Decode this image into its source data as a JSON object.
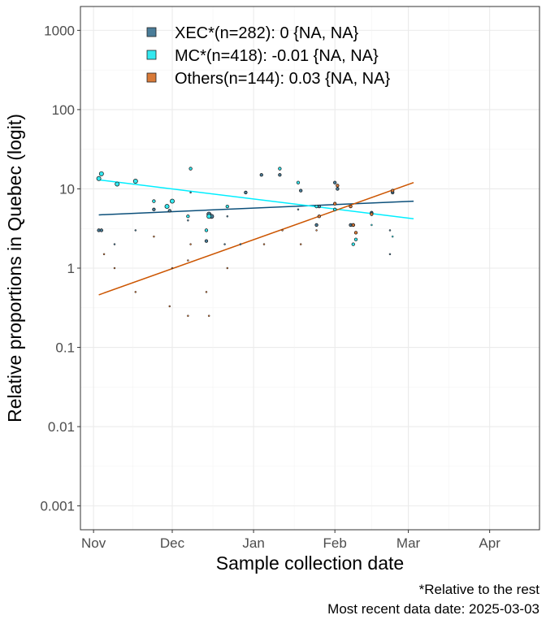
{
  "chart_data": {
    "type": "scatter",
    "title": "",
    "xlabel": "Sample collection date",
    "ylabel": "Relative proportions in Quebec (logit)",
    "y_scale": "log10",
    "ylim": [
      0.0005,
      2000
    ],
    "xlim": [
      "2024-10-27",
      "2025-04-20"
    ],
    "x_ticks": [
      {
        "date": "2024-11-01",
        "label": "Nov"
      },
      {
        "date": "2024-12-01",
        "label": "Dec"
      },
      {
        "date": "2025-01-01",
        "label": "Jan"
      },
      {
        "date": "2025-02-01",
        "label": "Feb"
      },
      {
        "date": "2025-03-01",
        "label": "Mar"
      },
      {
        "date": "2025-04-01",
        "label": "Apr"
      }
    ],
    "y_ticks": [
      {
        "value": 0.001,
        "label": "0.001"
      },
      {
        "value": 0.01,
        "label": "0.01"
      },
      {
        "value": 0.1,
        "label": "0.1"
      },
      {
        "value": 1,
        "label": "1"
      },
      {
        "value": 10,
        "label": "10"
      },
      {
        "value": 100,
        "label": "100"
      },
      {
        "value": 1000,
        "label": "1000"
      }
    ],
    "grid": true,
    "legend_position": "top-left",
    "series": [
      {
        "name": "XEC*(n=282): 0 {NA, NA}",
        "color": "#4a7d99",
        "line_color": "#0b4f7a",
        "fit": [
          {
            "x": "2024-11-03",
            "y": 4.7
          },
          {
            "x": "2025-03-03",
            "y": 7.0
          }
        ],
        "points": [
          {
            "x": "2024-11-03",
            "y": 3.0,
            "size": 2
          },
          {
            "x": "2024-11-04",
            "y": 3.0,
            "size": 2
          },
          {
            "x": "2024-11-09",
            "y": 2.0,
            "size": 1
          },
          {
            "x": "2024-11-17",
            "y": 3.0,
            "size": 1
          },
          {
            "x": "2024-11-24",
            "y": 5.5,
            "size": 2
          },
          {
            "x": "2024-11-30",
            "y": 5.3,
            "size": 2
          },
          {
            "x": "2024-12-07",
            "y": 4.0,
            "size": 1
          },
          {
            "x": "2024-12-08",
            "y": 9.0,
            "size": 1
          },
          {
            "x": "2024-12-14",
            "y": 2.2,
            "size": 2
          },
          {
            "x": "2024-12-15",
            "y": 4.8,
            "size": 3
          },
          {
            "x": "2024-12-16",
            "y": 4.5,
            "size": 3
          },
          {
            "x": "2024-12-21",
            "y": 2.0,
            "size": 1
          },
          {
            "x": "2024-12-22",
            "y": 4.5,
            "size": 1
          },
          {
            "x": "2024-12-27",
            "y": 2.0,
            "size": 1
          },
          {
            "x": "2024-12-29",
            "y": 9.0,
            "size": 2
          },
          {
            "x": "2025-01-04",
            "y": 15.0,
            "size": 2
          },
          {
            "x": "2025-01-11",
            "y": 15.0,
            "size": 2
          },
          {
            "x": "2025-01-18",
            "y": 5.5,
            "size": 1
          },
          {
            "x": "2025-01-19",
            "y": 9.5,
            "size": 2
          },
          {
            "x": "2025-01-25",
            "y": 3.5,
            "size": 2
          },
          {
            "x": "2025-01-26",
            "y": 6.0,
            "size": 2
          },
          {
            "x": "2025-02-01",
            "y": 12.0,
            "size": 2
          },
          {
            "x": "2025-02-02",
            "y": 10.0,
            "size": 2
          },
          {
            "x": "2025-02-07",
            "y": 3.5,
            "size": 2
          },
          {
            "x": "2025-02-08",
            "y": 3.5,
            "size": 2
          },
          {
            "x": "2025-02-15",
            "y": 5.0,
            "size": 2
          },
          {
            "x": "2025-02-22",
            "y": 3.0,
            "size": 1
          },
          {
            "x": "2025-02-22",
            "y": 1.5,
            "size": 1
          },
          {
            "x": "2025-02-23",
            "y": 9.0,
            "size": 2
          }
        ]
      },
      {
        "name": "MC*(n=418): -0.01 {NA, NA}",
        "color": "#33e8ef",
        "line_color": "#00eeff",
        "fit": [
          {
            "x": "2024-11-03",
            "y": 13.0
          },
          {
            "x": "2025-03-03",
            "y": 4.2
          }
        ],
        "points": [
          {
            "x": "2024-11-03",
            "y": 13.5,
            "size": 3
          },
          {
            "x": "2024-11-04",
            "y": 15.5,
            "size": 3
          },
          {
            "x": "2024-11-10",
            "y": 11.5,
            "size": 3
          },
          {
            "x": "2024-11-17",
            "y": 12.5,
            "size": 3
          },
          {
            "x": "2024-11-24",
            "y": 7.0,
            "size": 2
          },
          {
            "x": "2024-11-29",
            "y": 6.0,
            "size": 3
          },
          {
            "x": "2024-12-01",
            "y": 7.0,
            "size": 3
          },
          {
            "x": "2024-12-07",
            "y": 4.5,
            "size": 2
          },
          {
            "x": "2024-12-08",
            "y": 18.0,
            "size": 2
          },
          {
            "x": "2024-12-14",
            "y": 3.0,
            "size": 2
          },
          {
            "x": "2024-12-15",
            "y": 4.5,
            "size": 3
          },
          {
            "x": "2024-12-22",
            "y": 6.0,
            "size": 2
          },
          {
            "x": "2025-01-11",
            "y": 18.0,
            "size": 2
          },
          {
            "x": "2025-01-18",
            "y": 12.0,
            "size": 2
          },
          {
            "x": "2025-01-25",
            "y": 6.0,
            "size": 2
          },
          {
            "x": "2025-02-01",
            "y": 5.5,
            "size": 2
          },
          {
            "x": "2025-02-08",
            "y": 2.0,
            "size": 2
          },
          {
            "x": "2025-02-09",
            "y": 2.3,
            "size": 2
          },
          {
            "x": "2025-02-15",
            "y": 3.5,
            "size": 1
          },
          {
            "x": "2025-02-23",
            "y": 2.5,
            "size": 1
          }
        ]
      },
      {
        "name": "Others(n=144): 0.03 {NA, NA}",
        "color": "#d97a38",
        "line_color": "#cc5500",
        "fit": [
          {
            "x": "2024-11-03",
            "y": 0.46
          },
          {
            "x": "2025-03-03",
            "y": 12.0
          }
        ],
        "points": [
          {
            "x": "2024-11-05",
            "y": 1.5,
            "size": 1
          },
          {
            "x": "2024-11-09",
            "y": 1.0,
            "size": 1
          },
          {
            "x": "2024-11-17",
            "y": 0.5,
            "size": 1
          },
          {
            "x": "2024-11-24",
            "y": 2.5,
            "size": 1
          },
          {
            "x": "2024-11-30",
            "y": 0.33,
            "size": 1
          },
          {
            "x": "2024-12-01",
            "y": 1.0,
            "size": 1
          },
          {
            "x": "2024-12-07",
            "y": 1.25,
            "size": 1
          },
          {
            "x": "2024-12-07",
            "y": 0.25,
            "size": 1
          },
          {
            "x": "2024-12-08",
            "y": 2.0,
            "size": 1
          },
          {
            "x": "2024-12-14",
            "y": 0.5,
            "size": 1
          },
          {
            "x": "2024-12-15",
            "y": 0.25,
            "size": 1
          },
          {
            "x": "2024-12-22",
            "y": 1.0,
            "size": 1
          },
          {
            "x": "2025-01-05",
            "y": 2.0,
            "size": 1
          },
          {
            "x": "2025-01-12",
            "y": 3.0,
            "size": 1
          },
          {
            "x": "2025-01-19",
            "y": 2.0,
            "size": 1
          },
          {
            "x": "2025-01-25",
            "y": 3.0,
            "size": 1
          },
          {
            "x": "2025-01-26",
            "y": 4.5,
            "size": 2
          },
          {
            "x": "2025-02-01",
            "y": 6.5,
            "size": 2
          },
          {
            "x": "2025-02-02",
            "y": 11.0,
            "size": 2
          },
          {
            "x": "2025-02-07",
            "y": 6.0,
            "size": 2
          },
          {
            "x": "2025-02-08",
            "y": 3.5,
            "size": 2
          },
          {
            "x": "2025-02-09",
            "y": 2.8,
            "size": 2
          },
          {
            "x": "2025-02-15",
            "y": 4.8,
            "size": 2
          },
          {
            "x": "2025-02-23",
            "y": 9.5,
            "size": 2
          }
        ]
      }
    ],
    "captions": [
      "*Relative to the rest",
      "Most recent data date: 2025-03-03"
    ]
  }
}
